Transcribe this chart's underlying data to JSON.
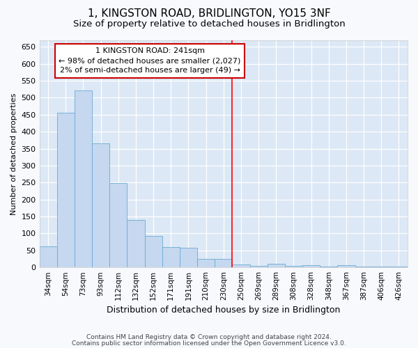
{
  "title": "1, KINGSTON ROAD, BRIDLINGTON, YO15 3NF",
  "subtitle": "Size of property relative to detached houses in Bridlington",
  "xlabel": "Distribution of detached houses by size in Bridlington",
  "ylabel": "Number of detached properties",
  "categories": [
    "34sqm",
    "54sqm",
    "73sqm",
    "93sqm",
    "112sqm",
    "132sqm",
    "152sqm",
    "171sqm",
    "191sqm",
    "210sqm",
    "230sqm",
    "250sqm",
    "269sqm",
    "289sqm",
    "308sqm",
    "328sqm",
    "348sqm",
    "367sqm",
    "387sqm",
    "406sqm",
    "426sqm"
  ],
  "values": [
    62,
    456,
    521,
    366,
    248,
    140,
    93,
    60,
    57,
    25,
    25,
    8,
    5,
    10,
    5,
    7,
    2,
    7,
    2,
    2,
    2
  ],
  "bar_color": "#c5d8ef",
  "bar_edge_color": "#6aaad4",
  "ylim": [
    0,
    670
  ],
  "yticks": [
    0,
    50,
    100,
    150,
    200,
    250,
    300,
    350,
    400,
    450,
    500,
    550,
    600,
    650
  ],
  "vline_x_index": 10.5,
  "annotation_title": "1 KINGSTON ROAD: 241sqm",
  "annotation_line1": "← 98% of detached houses are smaller (2,027)",
  "annotation_line2": "2% of semi-detached houses are larger (49) →",
  "footer1": "Contains HM Land Registry data © Crown copyright and database right 2024.",
  "footer2": "Contains public sector information licensed under the Open Government Licence v3.0.",
  "fig_bg_color": "#f7f9fd",
  "plot_bg_color": "#dce8f5",
  "grid_color": "#ffffff",
  "title_fontsize": 11,
  "subtitle_fontsize": 9.5,
  "xlabel_fontsize": 9,
  "ylabel_fontsize": 8
}
